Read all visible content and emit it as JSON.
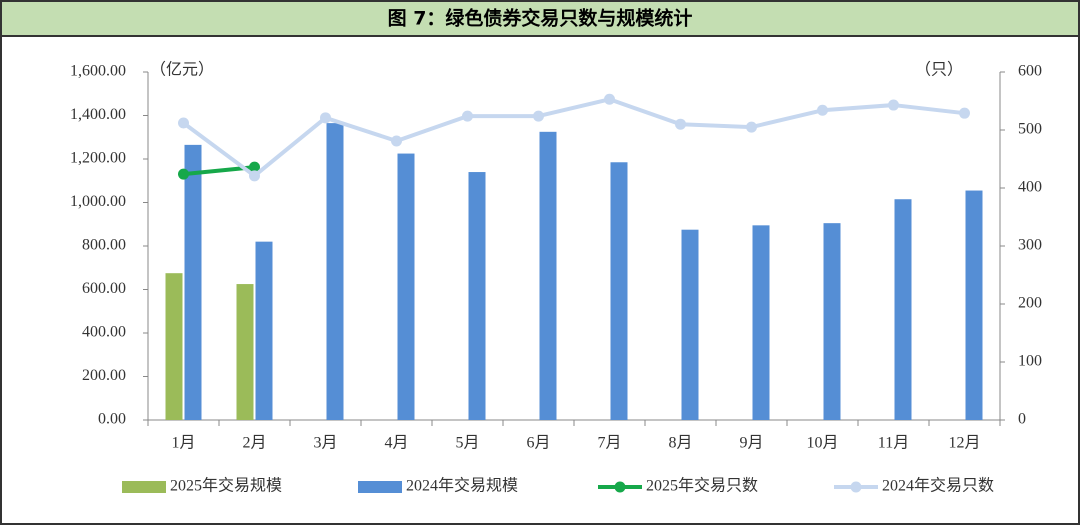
{
  "chart_data": {
    "type": "bar_line",
    "title": "图 7：绿色债券交易只数与规模统计",
    "y_unit": "（亿元）",
    "y2_unit": "（只）",
    "categories": [
      "1月",
      "2月",
      "3月",
      "4月",
      "5月",
      "6月",
      "7月",
      "8月",
      "9月",
      "10月",
      "11月",
      "12月"
    ],
    "series": [
      {
        "name": "2025年交易规模",
        "type": "bar",
        "color": "#9bbb59",
        "values": [
          675,
          625,
          null,
          null,
          null,
          null,
          null,
          null,
          null,
          null,
          null,
          null
        ]
      },
      {
        "name": "2024年交易规模",
        "type": "bar",
        "color": "#558ed5",
        "values": [
          1265,
          820,
          1365,
          1225,
          1140,
          1325,
          1185,
          875,
          895,
          905,
          1015,
          1055
        ]
      },
      {
        "name": "2025年交易只数",
        "type": "line",
        "axis": "y2",
        "color": "#16a84a",
        "values": [
          424,
          436,
          null,
          null,
          null,
          null,
          null,
          null,
          null,
          null,
          null,
          null
        ]
      },
      {
        "name": "2024年交易只数",
        "type": "line",
        "axis": "y2",
        "color": "#c6d7ef",
        "values": [
          512,
          421,
          521,
          481,
          524,
          524,
          553,
          510,
          505,
          534,
          543,
          529
        ]
      }
    ],
    "ylim": [
      0,
      1600
    ],
    "yticks": [
      {
        "value": 0,
        "label": "0.00"
      },
      {
        "value": 200,
        "label": "200.00"
      },
      {
        "value": 400,
        "label": "400.00"
      },
      {
        "value": 600,
        "label": "600.00"
      },
      {
        "value": 800,
        "label": "800.00"
      },
      {
        "value": 1000,
        "label": "1,000.00"
      },
      {
        "value": 1200,
        "label": "1,200.00"
      },
      {
        "value": 1400,
        "label": "1,400.00"
      },
      {
        "value": 1600,
        "label": "1,600.00"
      }
    ],
    "y2lim": [
      0,
      600
    ],
    "y2ticks": [
      0,
      100,
      200,
      300,
      400,
      500,
      600
    ]
  }
}
